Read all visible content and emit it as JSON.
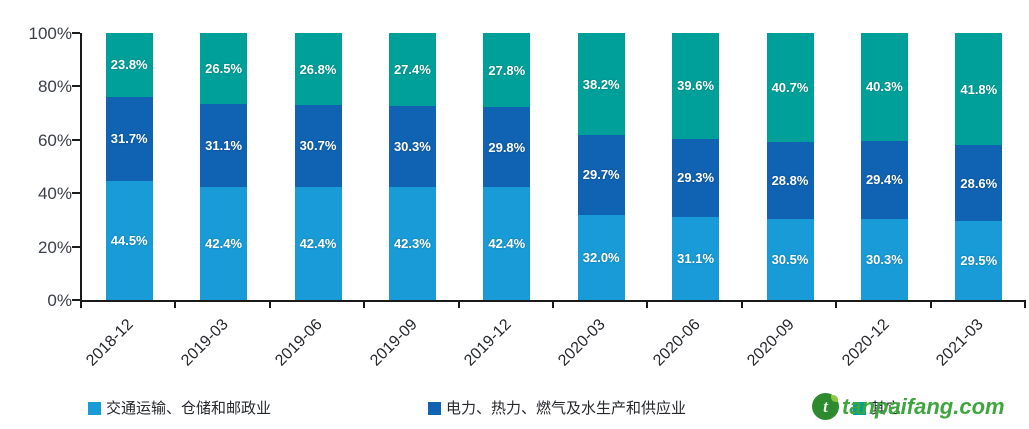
{
  "chart_data": {
    "type": "bar",
    "variant": "stacked-100-percent",
    "title": "",
    "xlabel": "",
    "ylabel": "",
    "grid": false,
    "legend_position": "bottom",
    "categories": [
      "2018-12",
      "2019-03",
      "2019-06",
      "2019-09",
      "2019-12",
      "2020-03",
      "2020-06",
      "2020-09",
      "2020-12",
      "2021-03"
    ],
    "series": [
      {
        "name": "交通运输、仓储和邮政业",
        "color": "#199BD8",
        "values": [
          44.5,
          42.4,
          42.4,
          42.3,
          42.4,
          32.0,
          31.1,
          30.5,
          30.3,
          29.5
        ]
      },
      {
        "name": "电力、热力、燃气及水生产和供应业",
        "color": "#1062B2",
        "values": [
          31.7,
          31.1,
          30.7,
          30.3,
          29.8,
          29.7,
          29.3,
          28.8,
          29.4,
          28.6
        ]
      },
      {
        "name": "其它",
        "color": "#00A09A",
        "values": [
          23.8,
          26.5,
          26.8,
          27.4,
          27.8,
          38.2,
          39.6,
          40.7,
          40.3,
          41.8
        ]
      }
    ],
    "y_axis": {
      "min": 0,
      "max": 100,
      "tick_labels": [
        "0%",
        "20%",
        "40%",
        "60%",
        "80%",
        "100%"
      ],
      "tick_step": 20
    },
    "data_label_format": "0.0%"
  },
  "watermark": {
    "text": "tanpaifang.com",
    "color": "#3FA63F"
  }
}
